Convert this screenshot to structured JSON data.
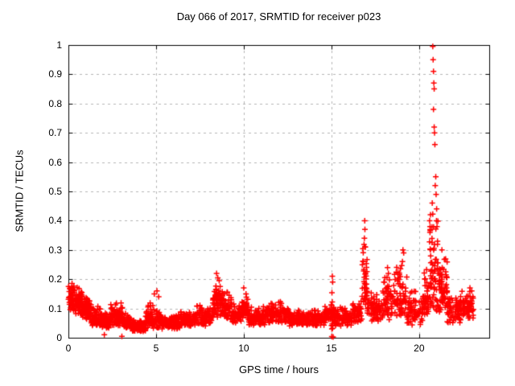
{
  "chart_data": {
    "type": "scatter",
    "title": "Day 066 of 2017, SRMTID for receiver p023",
    "xlabel": "GPS time / hours",
    "ylabel": "SRMTID / TECUs",
    "xlim": [
      0,
      24
    ],
    "ylim": [
      0,
      1
    ],
    "xtick_values": [
      0,
      5,
      10,
      15,
      20
    ],
    "xtick_labels": [
      "0",
      "5",
      "10",
      "15",
      "20"
    ],
    "ytick_values": [
      0,
      0.1,
      0.2,
      0.3,
      0.4,
      0.5,
      0.6,
      0.7,
      0.8,
      0.9,
      1
    ],
    "ytick_labels": [
      "0",
      "0.1",
      "0.2",
      "0.3",
      "0.4",
      "0.5",
      "0.6",
      "0.7",
      "0.8",
      "0.9",
      "1"
    ],
    "grid": true,
    "legend": "none",
    "marker": "plus",
    "marker_color": "#ff0000",
    "grid_color": "#b4b4b4",
    "axis_color": "#000000",
    "background_color": "#ffffff",
    "series": [
      {
        "name": "SRMTID",
        "cloud_bands": [
          [
            0.0,
            0.35,
            0.09,
            0.19,
            45
          ],
          [
            0.35,
            0.8,
            0.08,
            0.18,
            70
          ],
          [
            0.8,
            1.3,
            0.06,
            0.14,
            70
          ],
          [
            1.3,
            1.9,
            0.04,
            0.11,
            70
          ],
          [
            1.9,
            2.4,
            0.03,
            0.09,
            60
          ],
          [
            2.4,
            3.1,
            0.04,
            0.13,
            80
          ],
          [
            3.1,
            3.6,
            0.03,
            0.09,
            60
          ],
          [
            3.6,
            4.4,
            0.02,
            0.07,
            95
          ],
          [
            4.4,
            5.3,
            0.03,
            0.12,
            90
          ],
          [
            5.3,
            6.4,
            0.03,
            0.08,
            105
          ],
          [
            6.4,
            7.3,
            0.04,
            0.1,
            85
          ],
          [
            7.3,
            8.2,
            0.04,
            0.12,
            85
          ],
          [
            8.2,
            8.7,
            0.07,
            0.2,
            60
          ],
          [
            8.7,
            9.3,
            0.06,
            0.17,
            60
          ],
          [
            9.3,
            9.9,
            0.05,
            0.12,
            60
          ],
          [
            9.9,
            10.25,
            0.06,
            0.16,
            45
          ],
          [
            10.25,
            11.3,
            0.04,
            0.11,
            100
          ],
          [
            11.3,
            12.6,
            0.05,
            0.13,
            115
          ],
          [
            12.6,
            14.6,
            0.04,
            0.1,
            175
          ],
          [
            14.6,
            15.0,
            0.05,
            0.12,
            40
          ],
          [
            15.0,
            15.15,
            0.02,
            0.19,
            22
          ],
          [
            15.15,
            16.2,
            0.04,
            0.11,
            85
          ],
          [
            16.2,
            16.75,
            0.05,
            0.13,
            50
          ],
          [
            16.75,
            17.05,
            0.08,
            0.37,
            42
          ],
          [
            17.05,
            17.9,
            0.05,
            0.16,
            75
          ],
          [
            17.9,
            18.5,
            0.06,
            0.22,
            60
          ],
          [
            18.5,
            19.3,
            0.07,
            0.28,
            70
          ],
          [
            19.3,
            20.2,
            0.04,
            0.17,
            75
          ],
          [
            20.2,
            20.55,
            0.06,
            0.24,
            45
          ],
          [
            20.55,
            21.1,
            0.09,
            0.45,
            70
          ],
          [
            21.1,
            21.6,
            0.08,
            0.3,
            65
          ],
          [
            21.6,
            22.4,
            0.05,
            0.15,
            75
          ],
          [
            22.4,
            23.1,
            0.06,
            0.17,
            60
          ]
        ],
        "outlier_points": [
          [
            2.05,
            0.01
          ],
          [
            3.05,
            0.005
          ],
          [
            4.9,
            0.15
          ],
          [
            5.05,
            0.16
          ],
          [
            5.15,
            0.14
          ],
          [
            8.45,
            0.22
          ],
          [
            8.52,
            0.205
          ],
          [
            8.6,
            0.195
          ],
          [
            10.0,
            0.17
          ],
          [
            15.02,
            0.004
          ],
          [
            15.05,
            0.21
          ],
          [
            15.07,
            0.19
          ],
          [
            15.1,
            0.003
          ],
          [
            16.88,
            0.34
          ],
          [
            16.9,
            0.4
          ],
          [
            16.91,
            0.37
          ],
          [
            16.93,
            0.31
          ],
          [
            18.2,
            0.24
          ],
          [
            18.25,
            0.22
          ],
          [
            19.05,
            0.26
          ],
          [
            19.08,
            0.3
          ],
          [
            19.12,
            0.29
          ],
          [
            20.6,
            0.4
          ],
          [
            20.62,
            0.36
          ],
          [
            20.65,
            0.42
          ],
          [
            20.75,
            0.46
          ],
          [
            20.78,
            0.995
          ],
          [
            20.8,
            0.95
          ],
          [
            20.82,
            0.91
          ],
          [
            20.82,
            0.78
          ],
          [
            20.84,
            0.87
          ],
          [
            20.86,
            0.85
          ],
          [
            20.86,
            0.72
          ],
          [
            20.88,
            0.7
          ],
          [
            20.9,
            0.66
          ],
          [
            20.92,
            0.52
          ],
          [
            20.95,
            0.55
          ],
          [
            20.97,
            0.49
          ],
          [
            21.0,
            0.44
          ],
          [
            21.02,
            0.38
          ],
          [
            21.05,
            0.33
          ],
          [
            21.3,
            0.3
          ],
          [
            22.9,
            0.17
          ],
          [
            23.0,
            0.16
          ]
        ]
      }
    ]
  }
}
